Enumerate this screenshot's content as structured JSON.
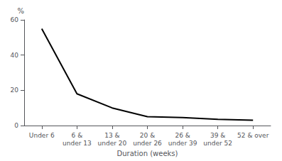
{
  "chart_data": {
    "type": "line",
    "xlabel": "Duration (weeks)",
    "ylabel": "%",
    "categories": [
      "Under 6",
      "6 &\nunder 13",
      "13 &\nunder 20",
      "20 &\nunder 26",
      "26 &\nunder 39",
      "39 &\nunder 52",
      "52 & over"
    ],
    "values": [
      55,
      18,
      10,
      5,
      4.5,
      3.5,
      3
    ],
    "color": "#000000",
    "ylim": [
      0,
      60
    ],
    "yticks": [
      0,
      20,
      40,
      60
    ],
    "grid": false
  }
}
